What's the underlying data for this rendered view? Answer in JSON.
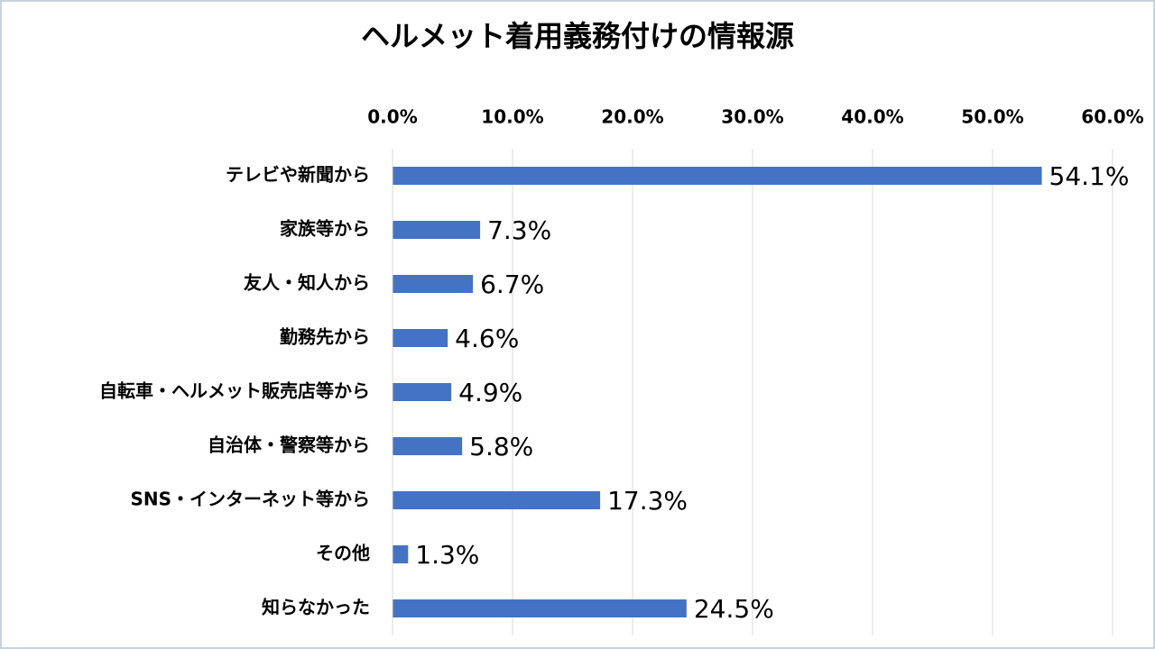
{
  "chart_data": {
    "type": "bar",
    "orientation": "horizontal",
    "title": "ヘルメット着用義務付けの情報源",
    "categories": [
      "テレビや新聞から",
      "家族等から",
      "友人・知人から",
      "勤務先から",
      "自転車・ヘルメット販売店等から",
      "自治体・警察等から",
      "SNS・インターネット等から",
      "その他",
      "知らなかった"
    ],
    "values": [
      54.1,
      7.3,
      6.7,
      4.6,
      4.9,
      5.8,
      17.3,
      1.3,
      24.5
    ],
    "value_labels": [
      "54.1%",
      "7.3%",
      "6.7%",
      "4.6%",
      "4.9%",
      "5.8%",
      "17.3%",
      "1.3%",
      "24.5%"
    ],
    "color": "#4472c4",
    "xlim": [
      0,
      60
    ],
    "xticks": [
      {
        "value": 0,
        "label": "0.0%"
      },
      {
        "value": 10,
        "label": "10.0%"
      },
      {
        "value": 20,
        "label": "20.0%"
      },
      {
        "value": 30,
        "label": "30.0%"
      },
      {
        "value": 40,
        "label": "40.0%"
      },
      {
        "value": 50,
        "label": "50.0%"
      },
      {
        "value": 60,
        "label": "60.0%"
      }
    ],
    "grid": true
  }
}
